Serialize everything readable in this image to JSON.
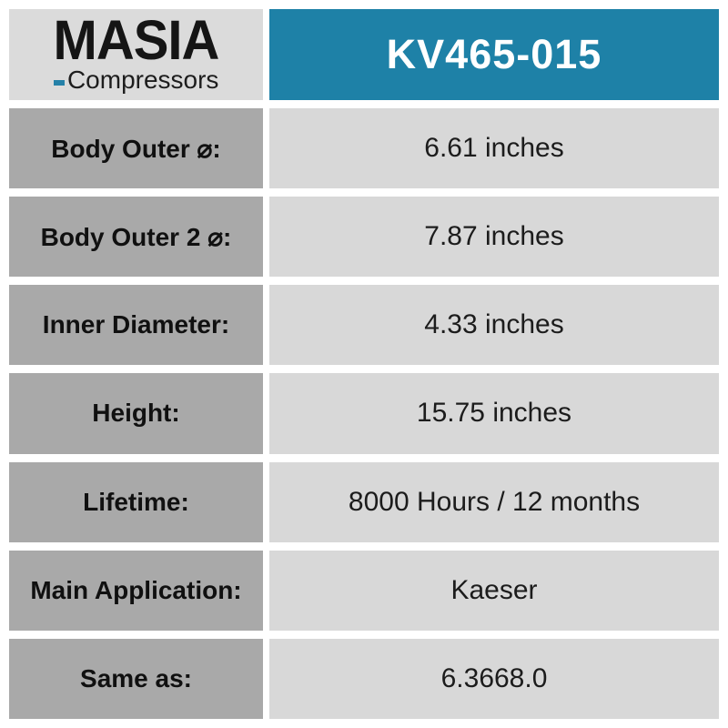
{
  "brand": {
    "name": "MASIA",
    "tagline": "Compressors"
  },
  "header": {
    "part_number": "KV465-015"
  },
  "colors": {
    "accent_teal": "#1e81a7",
    "logo_bar_teal": "#2581a8",
    "label_cell_gray": "#a9a9a9",
    "value_cell_gray": "#d8d8d8",
    "logo_cell_gray": "#dbdbdb",
    "text_black": "#151515",
    "header_text_white": "#ffffff"
  },
  "table": {
    "rows": [
      {
        "label": "Body Outer ⌀:",
        "value": "6.61 inches"
      },
      {
        "label": "Body Outer 2 ⌀:",
        "value": "7.87 inches"
      },
      {
        "label": "Inner Diameter:",
        "value": "4.33 inches"
      },
      {
        "label": "Height:",
        "value": "15.75 inches"
      },
      {
        "label": "Lifetime:",
        "value": "8000 Hours / 12 months"
      },
      {
        "label": "Main Application:",
        "value": "Kaeser"
      },
      {
        "label": "Same as:",
        "value": "6.3668.0"
      }
    ]
  }
}
